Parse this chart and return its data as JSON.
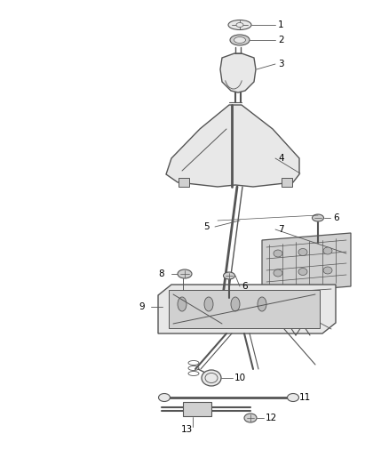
{
  "background_color": "#ffffff",
  "line_color": "#555555",
  "fill_light": "#e8e8e8",
  "fill_medium": "#d0d0d0",
  "fill_dark": "#b8b8b8",
  "label_color": "#000000",
  "fig_width": 4.38,
  "fig_height": 5.33,
  "dpi": 100
}
